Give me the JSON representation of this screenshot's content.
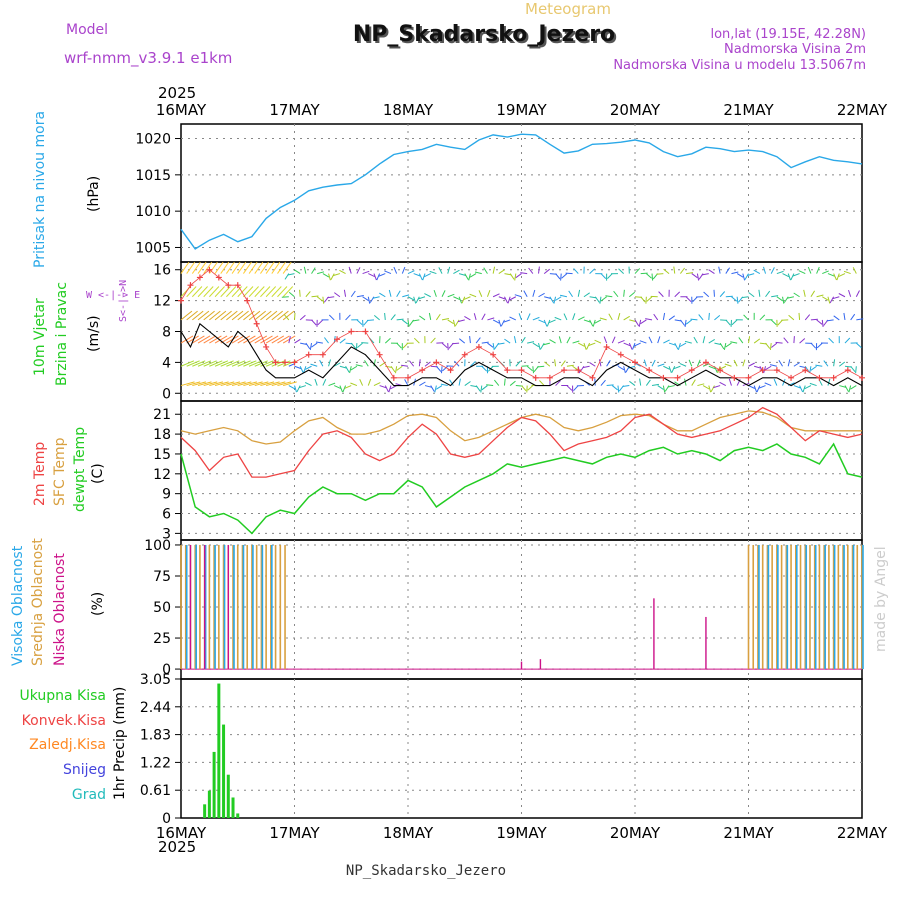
{
  "header": {
    "meteogram_label": "Meteogram",
    "title": "NP_Skadarsko_Jezero",
    "model_label": "Model",
    "model_name": "wrf-nmm_v3.9.1  e1km",
    "lonlat": "lon,lat (19.15E, 42.28N)",
    "elevation": "Nadmorska Visina 2m",
    "model_elevation": "Nadmorska Visina u modelu 13.5067m",
    "footer_title": "NP_Skadarsko_Jezero",
    "credit": "made by Angel",
    "year": "2025"
  },
  "colors": {
    "pressure": "#2aa8e8",
    "temp2m": "#ee4444",
    "sfc_temp": "#d8a040",
    "dewpoint": "#22cc22",
    "cloud_high": "#2aa8e8",
    "cloud_mid": "#d8a040",
    "cloud_low": "#cc1188",
    "precip": "#22cc22",
    "purple": "#aa44cc",
    "wind_speed": "#000000",
    "gust": "#ee4444"
  },
  "axis": {
    "x_ticks": [
      "16MAY",
      "17MAY",
      "18MAY",
      "19MAY",
      "20MAY",
      "21MAY",
      "22MAY"
    ]
  },
  "panels": {
    "pressure": {
      "ylabel_left": "Pritisak na nivou mora",
      "unit": "(hPa)",
      "ticks": [
        "1005",
        "1010",
        "1015",
        "1020"
      ]
    },
    "wind": {
      "ylabel_left_1": "10m Vjetar",
      "ylabel_left_2": "Brzina i Pravac",
      "unit": "(m/s)",
      "ticks": [
        "0",
        "4",
        "8",
        "12",
        "16"
      ],
      "compass": "W <-|-> E",
      "compass_ns": "S<-|->N"
    },
    "temperature": {
      "ylabel_1": "2m Temp",
      "ylabel_2": "SFC Temp",
      "ylabel_3": "dewpt Temp",
      "unit": "(C)",
      "ticks": [
        "3",
        "6",
        "9",
        "12",
        "15",
        "18",
        "21"
      ]
    },
    "clouds": {
      "ylabel_1": "Visoka Oblacnost",
      "ylabel_2": "Srednja Oblacnost",
      "ylabel_3": "Niska Oblacnost",
      "unit": "(%)",
      "ticks": [
        "0",
        "25",
        "50",
        "75",
        "100"
      ]
    },
    "precip": {
      "legend": [
        "Ukupna Kisa",
        "Konvek.Kisa",
        "Zaledj.Kisa",
        "Snijeg",
        "Grad"
      ],
      "legend_colors": [
        "#22cc22",
        "#ee4444",
        "#ff8822",
        "#4444dd",
        "#22bbbb"
      ],
      "unit": "1hr Precip (mm)",
      "ticks": [
        "0",
        "0.61",
        "1.22",
        "1.83",
        "2.44",
        "3.05"
      ]
    }
  },
  "chart_data": [
    {
      "type": "line",
      "name": "pressure",
      "x": [
        0,
        3,
        6,
        9,
        12,
        15,
        18,
        21,
        24,
        27,
        30,
        33,
        36,
        39,
        42,
        45,
        48,
        51,
        54,
        57,
        60,
        63,
        66,
        69,
        72,
        75,
        78,
        81,
        84,
        87,
        90,
        93,
        96,
        99,
        102,
        105,
        108,
        111,
        114,
        117,
        120,
        123,
        126,
        129,
        132,
        135,
        138,
        141,
        144
      ],
      "values": [
        1007.5,
        1004.8,
        1006.0,
        1006.8,
        1005.8,
        1006.5,
        1009.0,
        1010.5,
        1011.5,
        1012.8,
        1013.3,
        1013.6,
        1013.8,
        1015.0,
        1016.5,
        1017.8,
        1018.2,
        1018.5,
        1019.2,
        1018.8,
        1018.5,
        1019.8,
        1020.5,
        1020.2,
        1020.6,
        1020.5,
        1019.2,
        1018.0,
        1018.3,
        1019.2,
        1019.3,
        1019.5,
        1019.8,
        1019.4,
        1018.2,
        1017.5,
        1017.9,
        1018.8,
        1018.6,
        1018.2,
        1018.4,
        1018.2,
        1017.5,
        1016.0,
        1016.8,
        1017.5,
        1017.0,
        1016.8,
        1016.5
      ],
      "ylim": [
        1003,
        1022
      ]
    },
    {
      "type": "line",
      "name": "wind",
      "x": [
        0,
        2,
        4,
        6,
        8,
        10,
        12,
        14,
        16,
        18,
        20,
        22,
        24,
        27,
        30,
        33,
        36,
        39,
        42,
        45,
        48,
        51,
        54,
        57,
        60,
        63,
        66,
        69,
        72,
        75,
        78,
        81,
        84,
        87,
        90,
        93,
        96,
        99,
        102,
        105,
        108,
        111,
        114,
        117,
        120,
        123,
        126,
        129,
        132,
        135,
        138,
        141,
        144
      ],
      "values": [
        8,
        6,
        9,
        8,
        7,
        6,
        8,
        7,
        5,
        3,
        2,
        2,
        2,
        3,
        2,
        4,
        6,
        5,
        3,
        1,
        1,
        2,
        2,
        1,
        3,
        4,
        3,
        2,
        2,
        1,
        1,
        2,
        2,
        1,
        3,
        4,
        3,
        2,
        2,
        1,
        2,
        3,
        2,
        2,
        1,
        2,
        2,
        1,
        2,
        2,
        1,
        2,
        1
      ],
      "gust": [
        12,
        14,
        15,
        16,
        15,
        14,
        14,
        12,
        9,
        6,
        4,
        4,
        4,
        5,
        5,
        7,
        8,
        8,
        5,
        2,
        2,
        3,
        4,
        3,
        5,
        6,
        5,
        3,
        3,
        2,
        2,
        3,
        3,
        2,
        6,
        5,
        4,
        3,
        2,
        2,
        3,
        4,
        3,
        2,
        2,
        3,
        3,
        2,
        3,
        2,
        2,
        3,
        2
      ],
      "ylim": [
        -1,
        17
      ]
    },
    {
      "type": "line",
      "name": "temperature",
      "x": [
        0,
        3,
        6,
        9,
        12,
        15,
        18,
        21,
        24,
        27,
        30,
        33,
        36,
        39,
        42,
        45,
        48,
        51,
        54,
        57,
        60,
        63,
        66,
        69,
        72,
        75,
        78,
        81,
        84,
        87,
        90,
        93,
        96,
        99,
        102,
        105,
        108,
        111,
        114,
        117,
        120,
        123,
        126,
        129,
        132,
        135,
        138,
        141,
        144
      ],
      "temp2m": [
        17.5,
        15.5,
        12.5,
        14.5,
        15.0,
        11.5,
        11.5,
        12.0,
        12.5,
        15.5,
        18.0,
        18.5,
        17.5,
        15.0,
        14.0,
        15.0,
        17.5,
        19.5,
        18.0,
        15.0,
        14.5,
        15.0,
        17.0,
        19.0,
        20.5,
        20.0,
        18.0,
        15.5,
        16.5,
        17.0,
        17.5,
        18.5,
        20.5,
        21.0,
        19.5,
        18.0,
        17.5,
        18.0,
        18.5,
        19.5,
        20.5,
        22.0,
        21.0,
        19.0,
        17.0,
        18.5,
        18.0,
        17.5,
        18.0
      ],
      "sfc_temp": [
        18.5,
        18.0,
        18.5,
        19.0,
        18.5,
        17.0,
        16.5,
        16.8,
        18.5,
        20.0,
        20.5,
        19.0,
        18.0,
        18.0,
        18.5,
        19.5,
        20.8,
        21.0,
        20.5,
        18.5,
        17.0,
        17.5,
        18.5,
        19.5,
        20.5,
        21.0,
        20.5,
        19.0,
        18.5,
        19.0,
        19.8,
        20.8,
        21.0,
        20.8,
        19.5,
        18.5,
        18.5,
        19.5,
        20.5,
        21.0,
        21.5,
        21.3,
        20.5,
        19.0,
        18.5,
        18.5,
        18.5,
        18.5,
        18.5
      ],
      "dewpoint": [
        15.0,
        7.0,
        5.5,
        6.0,
        5.0,
        3.0,
        5.5,
        6.5,
        6.0,
        8.5,
        10.0,
        9.0,
        9.0,
        8.0,
        9.0,
        9.0,
        11.0,
        10.0,
        7.0,
        8.5,
        10.0,
        11.0,
        12.0,
        13.5,
        13.0,
        13.5,
        14.0,
        14.5,
        14.0,
        13.5,
        14.5,
        15.0,
        14.5,
        15.5,
        16.0,
        15.0,
        15.5,
        15.0,
        14.0,
        15.5,
        16.0,
        15.5,
        16.5,
        15.0,
        14.5,
        13.5,
        16.5,
        12.0,
        11.5
      ],
      "ylim": [
        2,
        23
      ]
    },
    {
      "type": "bar",
      "name": "clouds",
      "high_runs": [
        [
          1,
          20
        ],
        [
          122,
          144
        ]
      ],
      "mid_runs": [
        [
          0,
          22
        ],
        [
          120,
          144
        ]
      ],
      "low_events": [
        [
          2,
          100
        ],
        [
          5,
          100
        ],
        [
          10,
          100
        ],
        [
          72,
          6
        ],
        [
          76,
          8
        ],
        [
          100,
          57
        ],
        [
          111,
          42
        ]
      ],
      "ylim": [
        0,
        100
      ]
    },
    {
      "type": "bar",
      "name": "precip",
      "x": [
        5,
        6,
        7,
        8,
        9,
        10,
        11,
        12
      ],
      "values": [
        0.3,
        0.6,
        1.45,
        2.95,
        2.05,
        0.95,
        0.45,
        0.1
      ],
      "ylim": [
        0,
        3.05
      ]
    }
  ]
}
